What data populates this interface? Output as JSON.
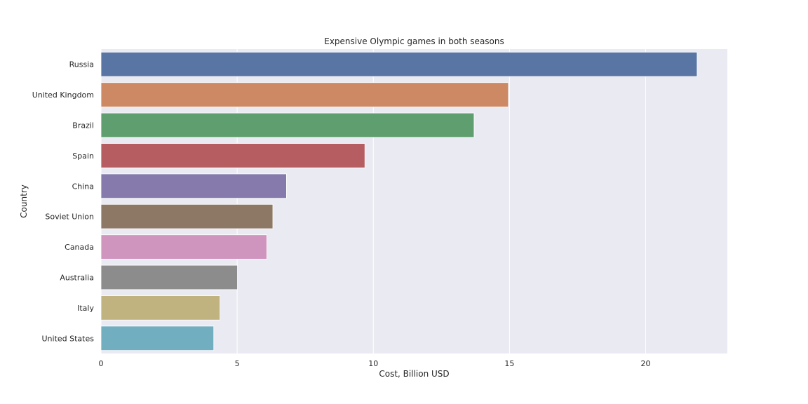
{
  "chart_data": {
    "type": "bar",
    "orientation": "horizontal",
    "title": "Expensive Olympic games in both seasons",
    "xlabel": "Cost, Billion USD",
    "ylabel": "Country",
    "xlim": [
      0,
      23
    ],
    "xticks": [
      0,
      5,
      10,
      15,
      20
    ],
    "grid": true,
    "categories": [
      "Russia",
      "United Kingdom",
      "Brazil",
      "Spain",
      "China",
      "Soviet Union",
      "Canada",
      "Australia",
      "Italy",
      "United States"
    ],
    "values": [
      21.89,
      14.96,
      13.7,
      9.69,
      6.81,
      6.31,
      6.09,
      5.01,
      4.37,
      4.14
    ],
    "colors": [
      "#5875a4",
      "#cc8963",
      "#5f9e6e",
      "#b55d60",
      "#857aab",
      "#8d7866",
      "#d095bf",
      "#8c8c8c",
      "#c1b37f",
      "#71aec0"
    ],
    "plot_background": "#eaeaf2",
    "grid_color": "#ffffff"
  }
}
